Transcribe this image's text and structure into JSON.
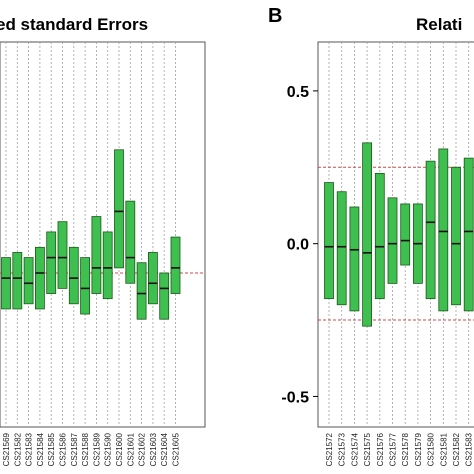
{
  "chart_data": [
    {
      "type": "box",
      "title": "ed standard Errors",
      "xlabel": "",
      "ylabel": "",
      "ylim": [
        0.7,
        1.45
      ],
      "yticks": [],
      "grid": "vertical dashed per sample",
      "reference_line": 1.0,
      "colors": {
        "box": "#3fbf4f",
        "box_edge": "#1a5a1a",
        "median": "#111111",
        "reference": "#d04a4a",
        "grid": "#a0a0a0"
      },
      "categories": [
        "CS21569",
        "CS21582",
        "CS21583",
        "CS21584",
        "CS21585",
        "CS21586",
        "CS21587",
        "CS21588",
        "CS21589",
        "CS21590",
        "CS21600",
        "CS21601",
        "CS21602",
        "CS21603",
        "CS21604",
        "CS21605"
      ],
      "series": [
        {
          "boxes": [
            {
              "q1": 0.93,
              "median": 0.99,
              "q3": 1.03
            },
            {
              "q1": 0.93,
              "median": 0.99,
              "q3": 1.04
            },
            {
              "q1": 0.94,
              "median": 0.98,
              "q3": 1.03
            },
            {
              "q1": 0.93,
              "median": 1.0,
              "q3": 1.05
            },
            {
              "q1": 0.96,
              "median": 1.03,
              "q3": 1.08
            },
            {
              "q1": 0.97,
              "median": 1.03,
              "q3": 1.1
            },
            {
              "q1": 0.94,
              "median": 0.99,
              "q3": 1.05
            },
            {
              "q1": 0.92,
              "median": 0.97,
              "q3": 1.03
            },
            {
              "q1": 0.96,
              "median": 1.01,
              "q3": 1.11
            },
            {
              "q1": 0.95,
              "median": 1.01,
              "q3": 1.08
            },
            {
              "q1": 1.01,
              "median": 1.12,
              "q3": 1.24
            },
            {
              "q1": 0.98,
              "median": 1.03,
              "q3": 1.14
            },
            {
              "q1": 0.91,
              "median": 0.96,
              "q3": 1.02
            },
            {
              "q1": 0.94,
              "median": 0.98,
              "q3": 1.04
            },
            {
              "q1": 0.91,
              "median": 0.97,
              "q3": 1.0
            },
            {
              "q1": 0.96,
              "median": 1.01,
              "q3": 1.07
            }
          ]
        }
      ]
    },
    {
      "type": "box",
      "title": "Relati",
      "xlabel": "",
      "ylabel": "",
      "ylim": [
        -0.6,
        0.66
      ],
      "yticks": [
        "0.5",
        "0.0",
        "-0.5"
      ],
      "grid": "vertical dashed per sample",
      "reference_lines": [
        0.25,
        -0.25
      ],
      "colors": {
        "box": "#3fbf4f",
        "box_edge": "#1a5a1a",
        "median": "#111111",
        "reference": "#d04a4a",
        "grid": "#a0a0a0"
      },
      "categories": [
        "CS21572",
        "CS21573",
        "CS21574",
        "CS21575",
        "CS21576",
        "CS21577",
        "CS21578",
        "CS21579",
        "CS21580",
        "CS21581",
        "CS21582",
        "CS21583",
        "CS21584"
      ],
      "series": [
        {
          "boxes": [
            {
              "q1": -0.18,
              "median": -0.01,
              "q3": 0.2
            },
            {
              "q1": -0.2,
              "median": -0.01,
              "q3": 0.17
            },
            {
              "q1": -0.22,
              "median": -0.02,
              "q3": 0.12
            },
            {
              "q1": -0.27,
              "median": -0.03,
              "q3": 0.33
            },
            {
              "q1": -0.18,
              "median": -0.01,
              "q3": 0.23
            },
            {
              "q1": -0.13,
              "median": 0.0,
              "q3": 0.15
            },
            {
              "q1": -0.07,
              "median": 0.01,
              "q3": 0.13
            },
            {
              "q1": -0.13,
              "median": 0.0,
              "q3": 0.13
            },
            {
              "q1": -0.18,
              "median": 0.07,
              "q3": 0.27
            },
            {
              "q1": -0.22,
              "median": 0.04,
              "q3": 0.31
            },
            {
              "q1": -0.2,
              "median": 0.0,
              "q3": 0.25
            },
            {
              "q1": -0.22,
              "median": 0.04,
              "q3": 0.28
            },
            {
              "q1": -0.17,
              "median": 0.0,
              "q3": 0.27
            }
          ]
        }
      ]
    }
  ],
  "panels": {
    "a_letter": "",
    "b_letter": "B"
  }
}
